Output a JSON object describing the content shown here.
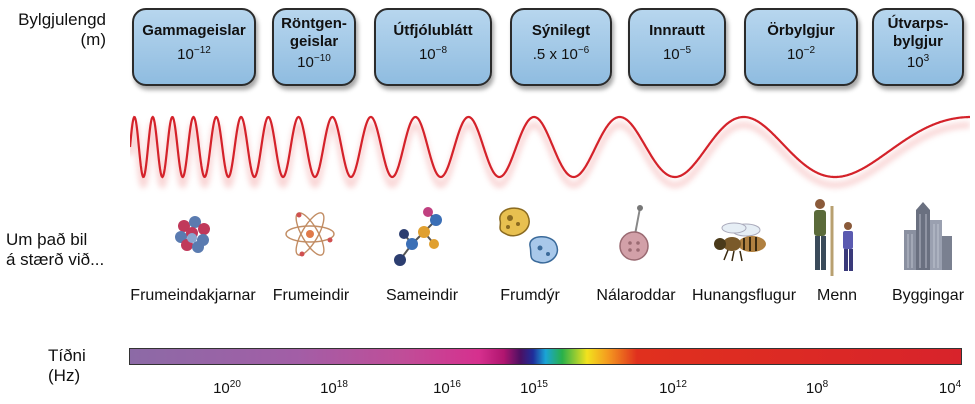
{
  "labels": {
    "wavelength_line1": "Bylgjulengd",
    "wavelength_line2": "(m)",
    "size_line1": "Um það bil",
    "size_line2": "á stærð við...",
    "frequency_line1": "Tíðni",
    "frequency_line2": "(Hz)"
  },
  "bands": [
    {
      "name": "Gammageislar",
      "base": "10",
      "exp": "−12",
      "prefix": ""
    },
    {
      "name1": "Röntgen-",
      "name2": "geislar",
      "base": "10",
      "exp": "−10",
      "prefix": ""
    },
    {
      "name": "Útfjólublátt",
      "base": "10",
      "exp": "−8",
      "prefix": ""
    },
    {
      "name": "Sýnilegt",
      "base": "10",
      "exp": "−6",
      "prefix": ".5 x "
    },
    {
      "name": "Innrautt",
      "base": "10",
      "exp": "−5",
      "prefix": ""
    },
    {
      "name": "Örbylgjur",
      "base": "10",
      "exp": "−2",
      "prefix": ""
    },
    {
      "name1": "Útvarps-",
      "name2": "bylgjur",
      "base": "10",
      "exp": "3",
      "prefix": ""
    }
  ],
  "objects": [
    "Frumeindakjarnar",
    "Frumeindir",
    "Sameindir",
    "Frumdýr",
    "Nálaroddar",
    "Hunangsflugur",
    "Menn",
    "Byggingar"
  ],
  "frequency_ticks": [
    {
      "base": "10",
      "exp": "20"
    },
    {
      "base": "10",
      "exp": "18"
    },
    {
      "base": "10",
      "exp": "16"
    },
    {
      "base": "10",
      "exp": "15"
    },
    {
      "base": "10",
      "exp": "12"
    },
    {
      "base": "10",
      "exp": "8"
    },
    {
      "base": "10",
      "exp": "4"
    }
  ],
  "colors": {
    "box_fill": "#9cc4e4",
    "box_border": "#2b2b2b",
    "wave": "#d4222a"
  }
}
